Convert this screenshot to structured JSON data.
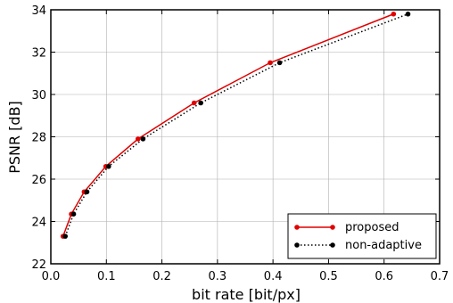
{
  "chart_data": {
    "type": "line",
    "xlabel": "bit rate [bit/px]",
    "ylabel": "PSNR [dB]",
    "xlim": [
      0.0,
      0.7
    ],
    "ylim": [
      22,
      34
    ],
    "xticks": [
      "0.0",
      "0.1",
      "0.2",
      "0.3",
      "0.4",
      "0.5",
      "0.6",
      "0.7"
    ],
    "yticks": [
      "22",
      "24",
      "26",
      "28",
      "30",
      "32",
      "34"
    ],
    "grid": true,
    "legend_position": "bottom-right",
    "series": [
      {
        "name": "proposed",
        "color": "#e00000",
        "line_style": "solid",
        "x": [
          0.022,
          0.037,
          0.06,
          0.099,
          0.157,
          0.258,
          0.395,
          0.617
        ],
        "y": [
          23.3,
          24.35,
          25.4,
          26.6,
          27.9,
          29.6,
          31.5,
          33.8
        ]
      },
      {
        "name": "non-adaptive",
        "color": "#000000",
        "line_style": "dotted",
        "x": [
          0.026,
          0.041,
          0.065,
          0.104,
          0.166,
          0.27,
          0.412,
          0.643
        ],
        "y": [
          23.3,
          24.35,
          25.4,
          26.6,
          27.9,
          29.6,
          31.5,
          33.8
        ]
      }
    ]
  }
}
